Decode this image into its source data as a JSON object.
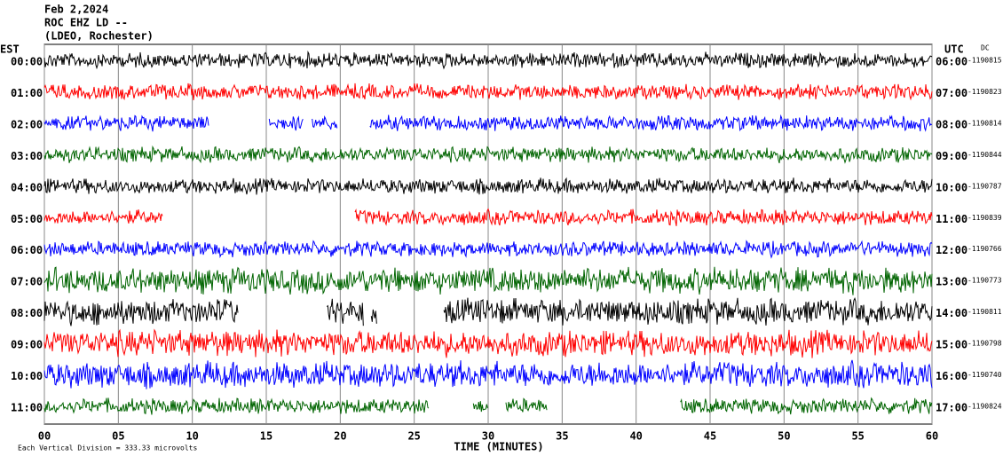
{
  "chart_data": {
    "type": "helicorder",
    "title_lines": [
      "Feb 2,2024",
      "ROC EHZ LD --",
      "(LDEO, Rochester)"
    ],
    "left_header": "EST",
    "right_header": "UTC",
    "dc_header": "DC",
    "x_label": "TIME (MINUTES)",
    "scale_note": "Each Vertical Division =  333.33 microvolts",
    "xlim": [
      0,
      60
    ],
    "xticks": [
      {
        "value": 0,
        "label": "00"
      },
      {
        "value": 5,
        "label": "05"
      },
      10,
      15,
      20,
      25,
      30,
      35,
      40,
      45,
      50,
      55,
      60
    ],
    "grid": true,
    "colors": [
      "#000000",
      "#ff0000",
      "#0000ff",
      "#006400"
    ],
    "rows": [
      {
        "est": "00:00",
        "utc": "06:00",
        "dc": "-1190815",
        "segments": [
          [
            0,
            60
          ]
        ]
      },
      {
        "est": "01:00",
        "utc": "07:00",
        "dc": "-1190823",
        "segments": [
          [
            0,
            60
          ]
        ]
      },
      {
        "est": "02:00",
        "utc": "08:00",
        "dc": "-1190814",
        "segments": [
          [
            0,
            11.1
          ],
          [
            15.2,
            17.5
          ],
          [
            18.1,
            19.8
          ],
          [
            22,
            60
          ]
        ]
      },
      {
        "est": "03:00",
        "utc": "09:00",
        "dc": "-1190844",
        "segments": [
          [
            0,
            60
          ]
        ]
      },
      {
        "est": "04:00",
        "utc": "10:00",
        "dc": "-1190787",
        "segments": [
          [
            0,
            60
          ]
        ]
      },
      {
        "est": "05:00",
        "utc": "11:00",
        "dc": "-1190839",
        "segments": [
          [
            0,
            8
          ],
          [
            21,
            60
          ]
        ]
      },
      {
        "est": "06:00",
        "utc": "12:00",
        "dc": "-1190766",
        "segments": [
          [
            0,
            60
          ]
        ]
      },
      {
        "est": "07:00",
        "utc": "13:00",
        "dc": "-1190773",
        "segments": [
          [
            0,
            60
          ]
        ]
      },
      {
        "est": "08:00",
        "utc": "14:00",
        "dc": "-1190811",
        "segments": [
          [
            0,
            13.1
          ],
          [
            19.1,
            21.6
          ],
          [
            22.1,
            22.5
          ],
          [
            27,
            60
          ]
        ]
      },
      {
        "est": "09:00",
        "utc": "15:00",
        "dc": "-1190798",
        "segments": [
          [
            0,
            60
          ]
        ]
      },
      {
        "est": "10:00",
        "utc": "16:00",
        "dc": "-1190740",
        "segments": [
          [
            0,
            60
          ]
        ]
      },
      {
        "est": "11:00",
        "utc": "17:00",
        "dc": "-1190824",
        "segments": [
          [
            0,
            26
          ],
          [
            29,
            30
          ],
          [
            31.2,
            34
          ],
          [
            43,
            60
          ]
        ]
      }
    ]
  }
}
